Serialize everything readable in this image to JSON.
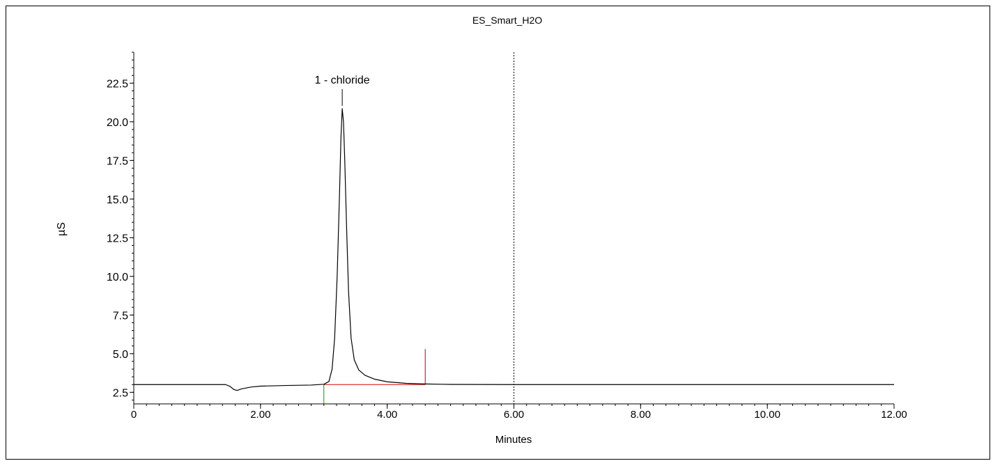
{
  "chart_data": {
    "type": "line",
    "title": "ES_Smart_H2O",
    "xlabel": "Minutes",
    "ylabel": "µS",
    "xlim": [
      0,
      12.0
    ],
    "ylim": [
      1.75,
      24.5
    ],
    "x_ticks": [
      "0",
      "2.00",
      "4.00",
      "6.00",
      "8.00",
      "10.00",
      "12.00"
    ],
    "y_ticks": [
      "2.5",
      "5.0",
      "7.5",
      "10.0",
      "12.5",
      "15.0",
      "17.5",
      "20.0",
      "22.5"
    ],
    "series": [
      {
        "color": "#000000",
        "points": [
          [
            0,
            3.0
          ],
          [
            1.0,
            3.0
          ],
          [
            1.45,
            3.0
          ],
          [
            1.52,
            2.88
          ],
          [
            1.58,
            2.68
          ],
          [
            1.63,
            2.62
          ],
          [
            1.7,
            2.72
          ],
          [
            1.85,
            2.84
          ],
          [
            2.0,
            2.9
          ],
          [
            2.4,
            2.94
          ],
          [
            2.8,
            2.97
          ],
          [
            3.0,
            3.02
          ],
          [
            3.08,
            3.2
          ],
          [
            3.13,
            4.0
          ],
          [
            3.17,
            6.0
          ],
          [
            3.21,
            10.0
          ],
          [
            3.245,
            15.0
          ],
          [
            3.27,
            19.0
          ],
          [
            3.29,
            20.85
          ],
          [
            3.31,
            20.0
          ],
          [
            3.33,
            17.5
          ],
          [
            3.36,
            13.0
          ],
          [
            3.39,
            9.0
          ],
          [
            3.43,
            6.0
          ],
          [
            3.48,
            4.6
          ],
          [
            3.55,
            3.95
          ],
          [
            3.65,
            3.6
          ],
          [
            3.8,
            3.35
          ],
          [
            4.0,
            3.18
          ],
          [
            4.3,
            3.08
          ],
          [
            4.6,
            3.04
          ],
          [
            5.0,
            3.01
          ],
          [
            6.0,
            3.0
          ],
          [
            8.0,
            3.0
          ],
          [
            9.0,
            3.0
          ],
          [
            10.0,
            3.0
          ],
          [
            12.0,
            3.0
          ]
        ]
      }
    ],
    "peaks": [
      {
        "label": "1 - chloride",
        "x": 3.29,
        "y": 20.85
      }
    ],
    "baseline": {
      "color": "#e00000",
      "x": [
        3.0,
        4.6
      ],
      "y": [
        3.0,
        3.0
      ]
    },
    "markers": [
      {
        "type": "start",
        "x": 3.0,
        "color": "#00a000",
        "y_from": 1.75,
        "y_to": 3.0
      },
      {
        "type": "end",
        "x": 4.6,
        "color": "#c00000",
        "y_from": 3.0,
        "y_to": 5.3
      }
    ],
    "vline": {
      "x": 6.0,
      "style": "dashed"
    },
    "grid": false,
    "legend": "none"
  }
}
